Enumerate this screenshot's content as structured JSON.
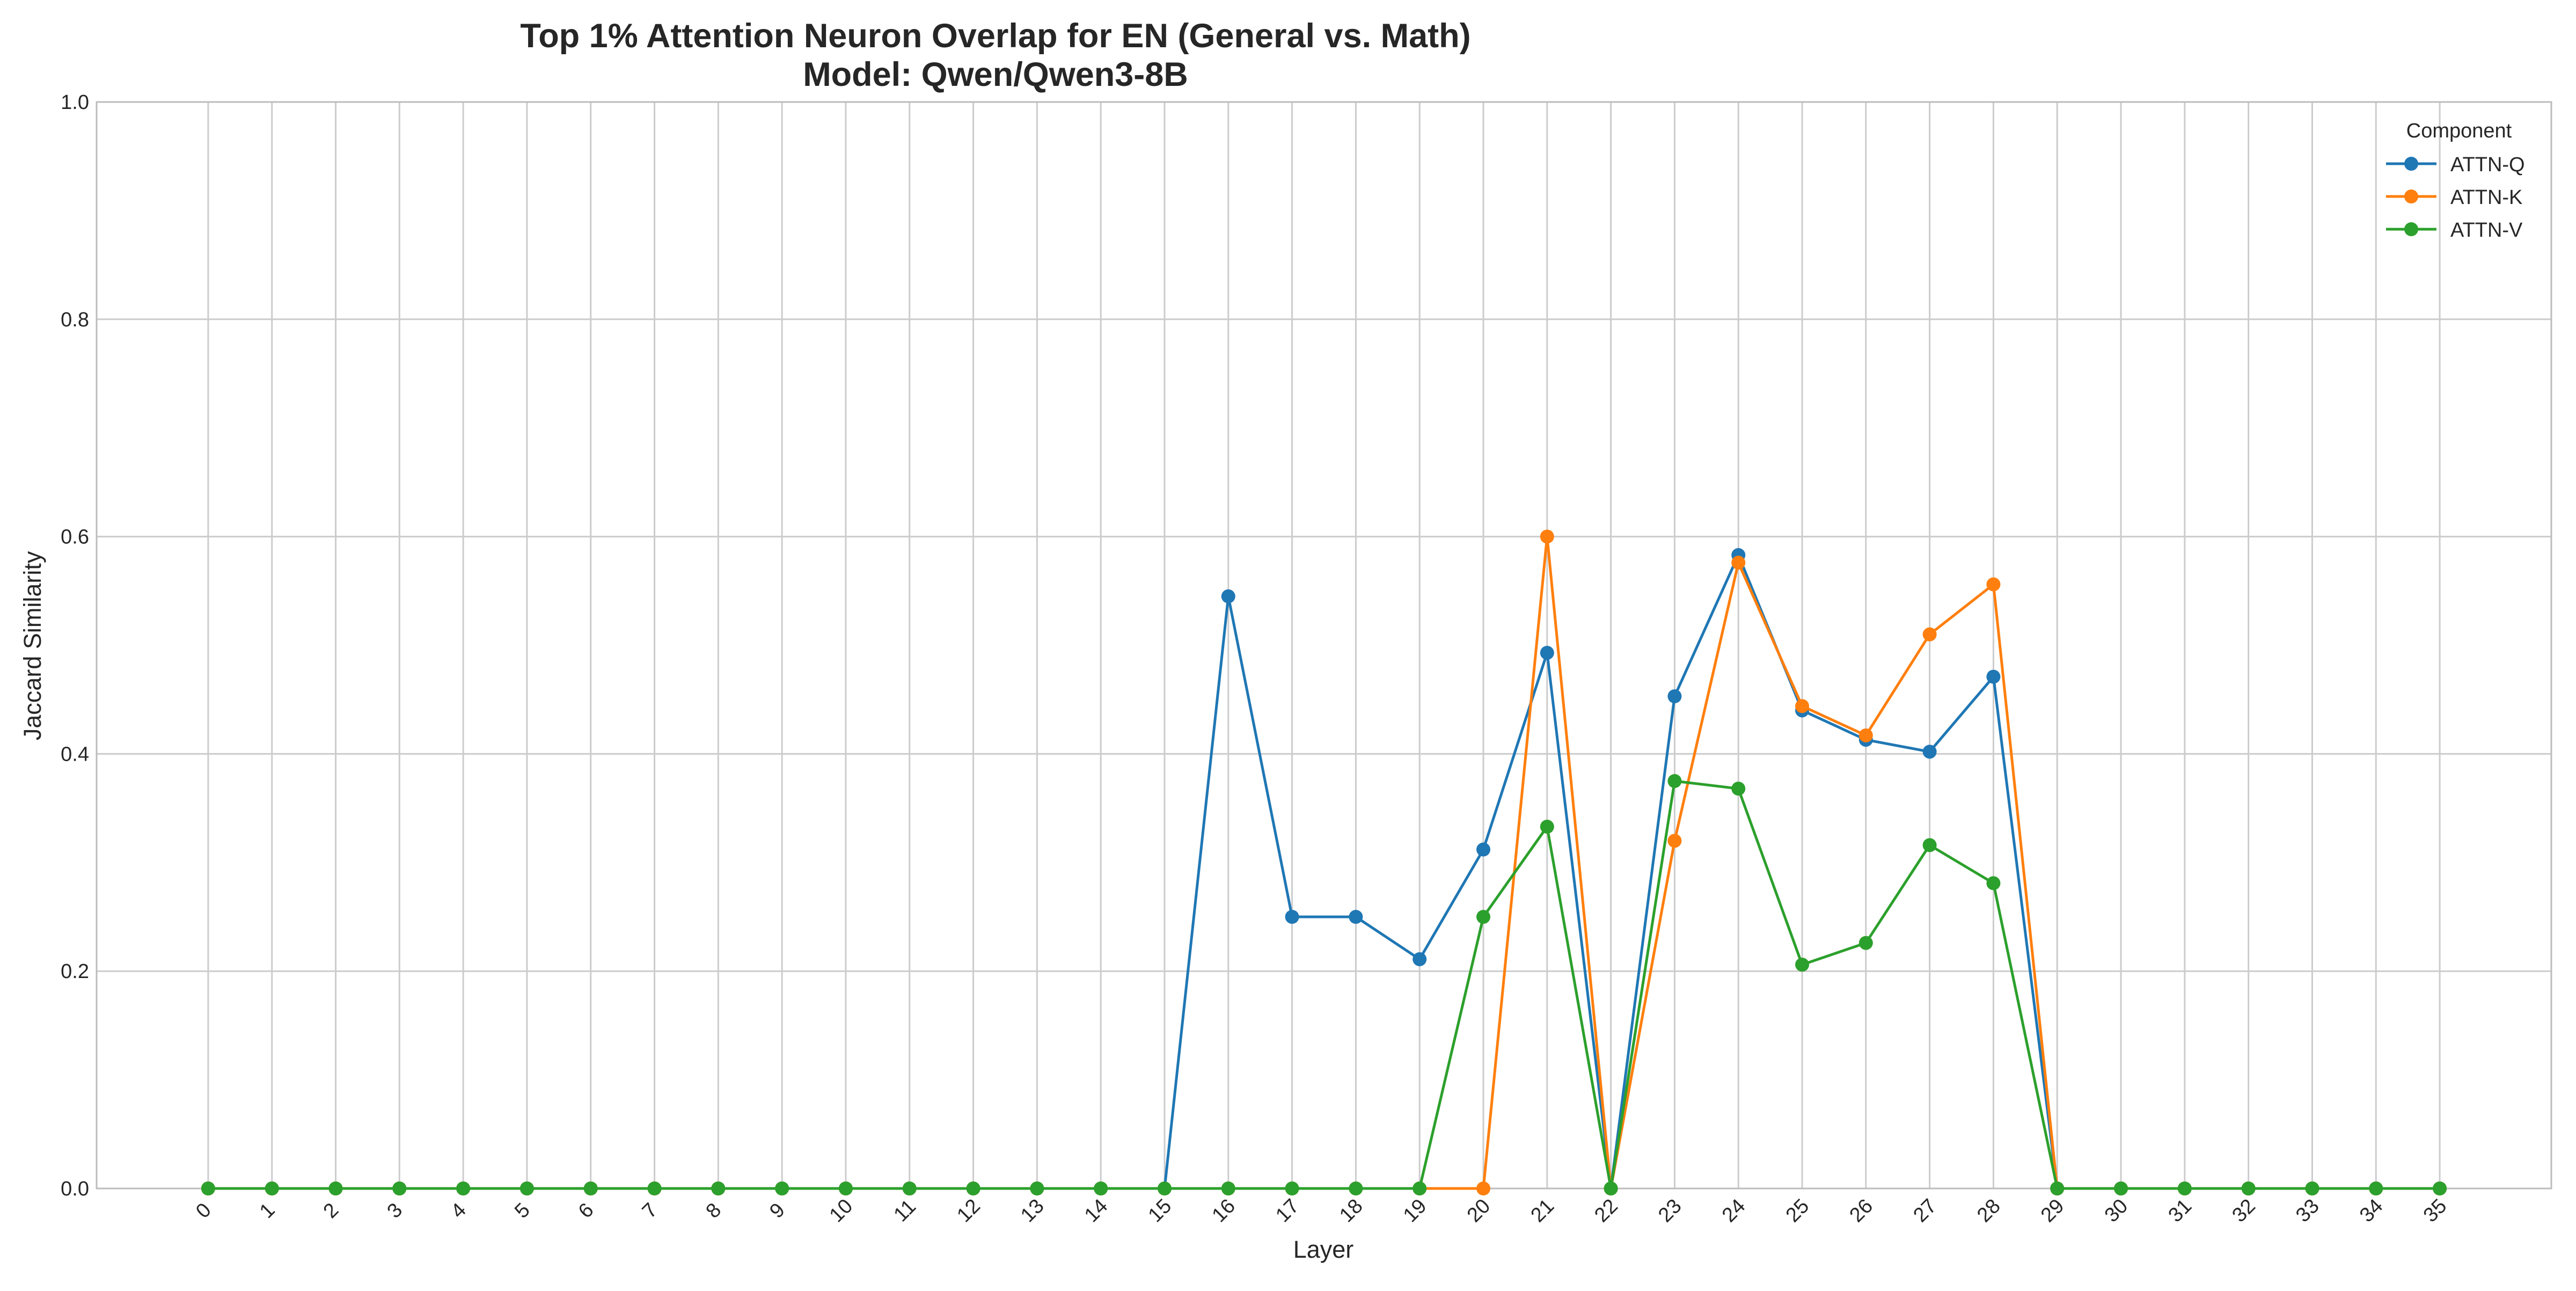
{
  "chart_data": {
    "type": "line",
    "title": "Top 1% Attention Neuron Overlap for EN (General vs. Math)",
    "subtitle": "Model: Qwen/Qwen3-8B",
    "xlabel": "Layer",
    "ylabel": "Jaccard Similarity",
    "ylim": [
      0,
      1.0
    ],
    "y_ticks": [
      "0.0",
      "0.2",
      "0.4",
      "0.6",
      "0.8",
      "1.0"
    ],
    "x": [
      0,
      1,
      2,
      3,
      4,
      5,
      6,
      7,
      8,
      9,
      10,
      11,
      12,
      13,
      14,
      15,
      16,
      17,
      18,
      19,
      20,
      21,
      22,
      23,
      24,
      25,
      26,
      27,
      28,
      29,
      30,
      31,
      32,
      33,
      34,
      35
    ],
    "grid": true,
    "legend": {
      "title": "Component",
      "placement": "top-right"
    },
    "series": [
      {
        "name": "ATTN-Q",
        "color": "#1f77b4",
        "values": [
          0,
          0,
          0,
          0,
          0,
          0,
          0,
          0,
          0,
          0,
          0,
          0,
          0,
          0,
          0,
          0,
          0.545,
          0.25,
          0.25,
          0.211,
          0.312,
          0.493,
          0,
          0.453,
          0.583,
          0.44,
          0.413,
          0.402,
          0.471,
          0,
          0,
          0,
          0,
          0,
          0,
          0
        ]
      },
      {
        "name": "ATTN-K",
        "color": "#ff7f0e",
        "values": [
          0,
          0,
          0,
          0,
          0,
          0,
          0,
          0,
          0,
          0,
          0,
          0,
          0,
          0,
          0,
          0,
          0,
          0,
          0,
          0,
          0,
          0.6,
          0,
          0.32,
          0.576,
          0.444,
          0.417,
          0.51,
          0.556,
          0,
          0,
          0,
          0,
          0,
          0,
          0
        ]
      },
      {
        "name": "ATTN-V",
        "color": "#2ca02c",
        "values": [
          0,
          0,
          0,
          0,
          0,
          0,
          0,
          0,
          0,
          0,
          0,
          0,
          0,
          0,
          0,
          0,
          0,
          0,
          0,
          0,
          0.25,
          0.333,
          0,
          0.375,
          0.368,
          0.206,
          0.226,
          0.316,
          0.281,
          0,
          0,
          0,
          0,
          0,
          0,
          0
        ]
      }
    ]
  }
}
